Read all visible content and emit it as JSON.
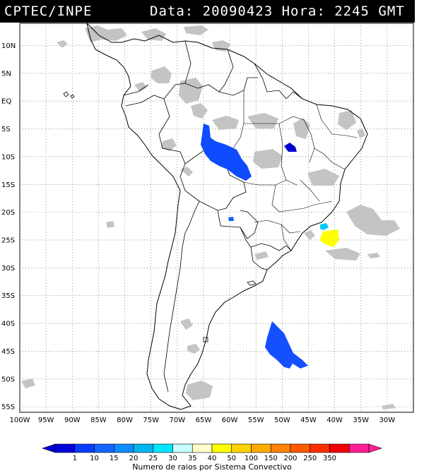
{
  "header": {
    "agency": "CPTEC/INPE",
    "datetime": "Data: 20090423 Hora: 2245 GMT"
  },
  "map": {
    "region": "South America",
    "projection": "lat-lon",
    "lon_range": [
      -100,
      -25
    ],
    "lat_range": [
      -56,
      14
    ],
    "lat_labels": [
      "10N",
      "5N",
      "EQ",
      "5S",
      "10S",
      "15S",
      "20S",
      "25S",
      "30S",
      "35S",
      "40S",
      "45S",
      "50S",
      "55S"
    ],
    "lon_labels": [
      "100W",
      "95W",
      "90W",
      "85W",
      "80W",
      "75W",
      "70W",
      "65W",
      "60W",
      "55W",
      "50W",
      "45W",
      "40W",
      "35W",
      "30W"
    ],
    "gridlines": "dotted",
    "cloud_color": "#c4c4c4",
    "storm_clusters": [
      {
        "area": "Amazon (Rondônia/Mato Grosso)",
        "color": "#0f4bff"
      },
      {
        "area": "Tocantins",
        "color": "#0000d0"
      },
      {
        "area": "Paraguay",
        "color": "#1560ff"
      },
      {
        "area": "off São Paulo coast",
        "color": "#00c8ff"
      },
      {
        "area": "off Santa Catarina coast",
        "color": "#ffff00"
      },
      {
        "area": "South Atlantic off Patagonia",
        "color": "#1550ff"
      }
    ]
  },
  "legend": {
    "title": "Numero de raios por Sistema Convectivo",
    "labels": [
      "1",
      "10",
      "15",
      "20",
      "25",
      "30",
      "35",
      "40",
      "50",
      "100",
      "150",
      "200",
      "250",
      "350"
    ],
    "colors": [
      "#0000d8",
      "#0a3cff",
      "#1468ff",
      "#0f8cff",
      "#00b4f0",
      "#00e6ff",
      "#c8ffff",
      "#ffffc8",
      "#ffff00",
      "#ffd200",
      "#ffaa00",
      "#ff8200",
      "#ff5a00",
      "#ff2d00",
      "#f00000",
      "#ff1e96"
    ]
  }
}
